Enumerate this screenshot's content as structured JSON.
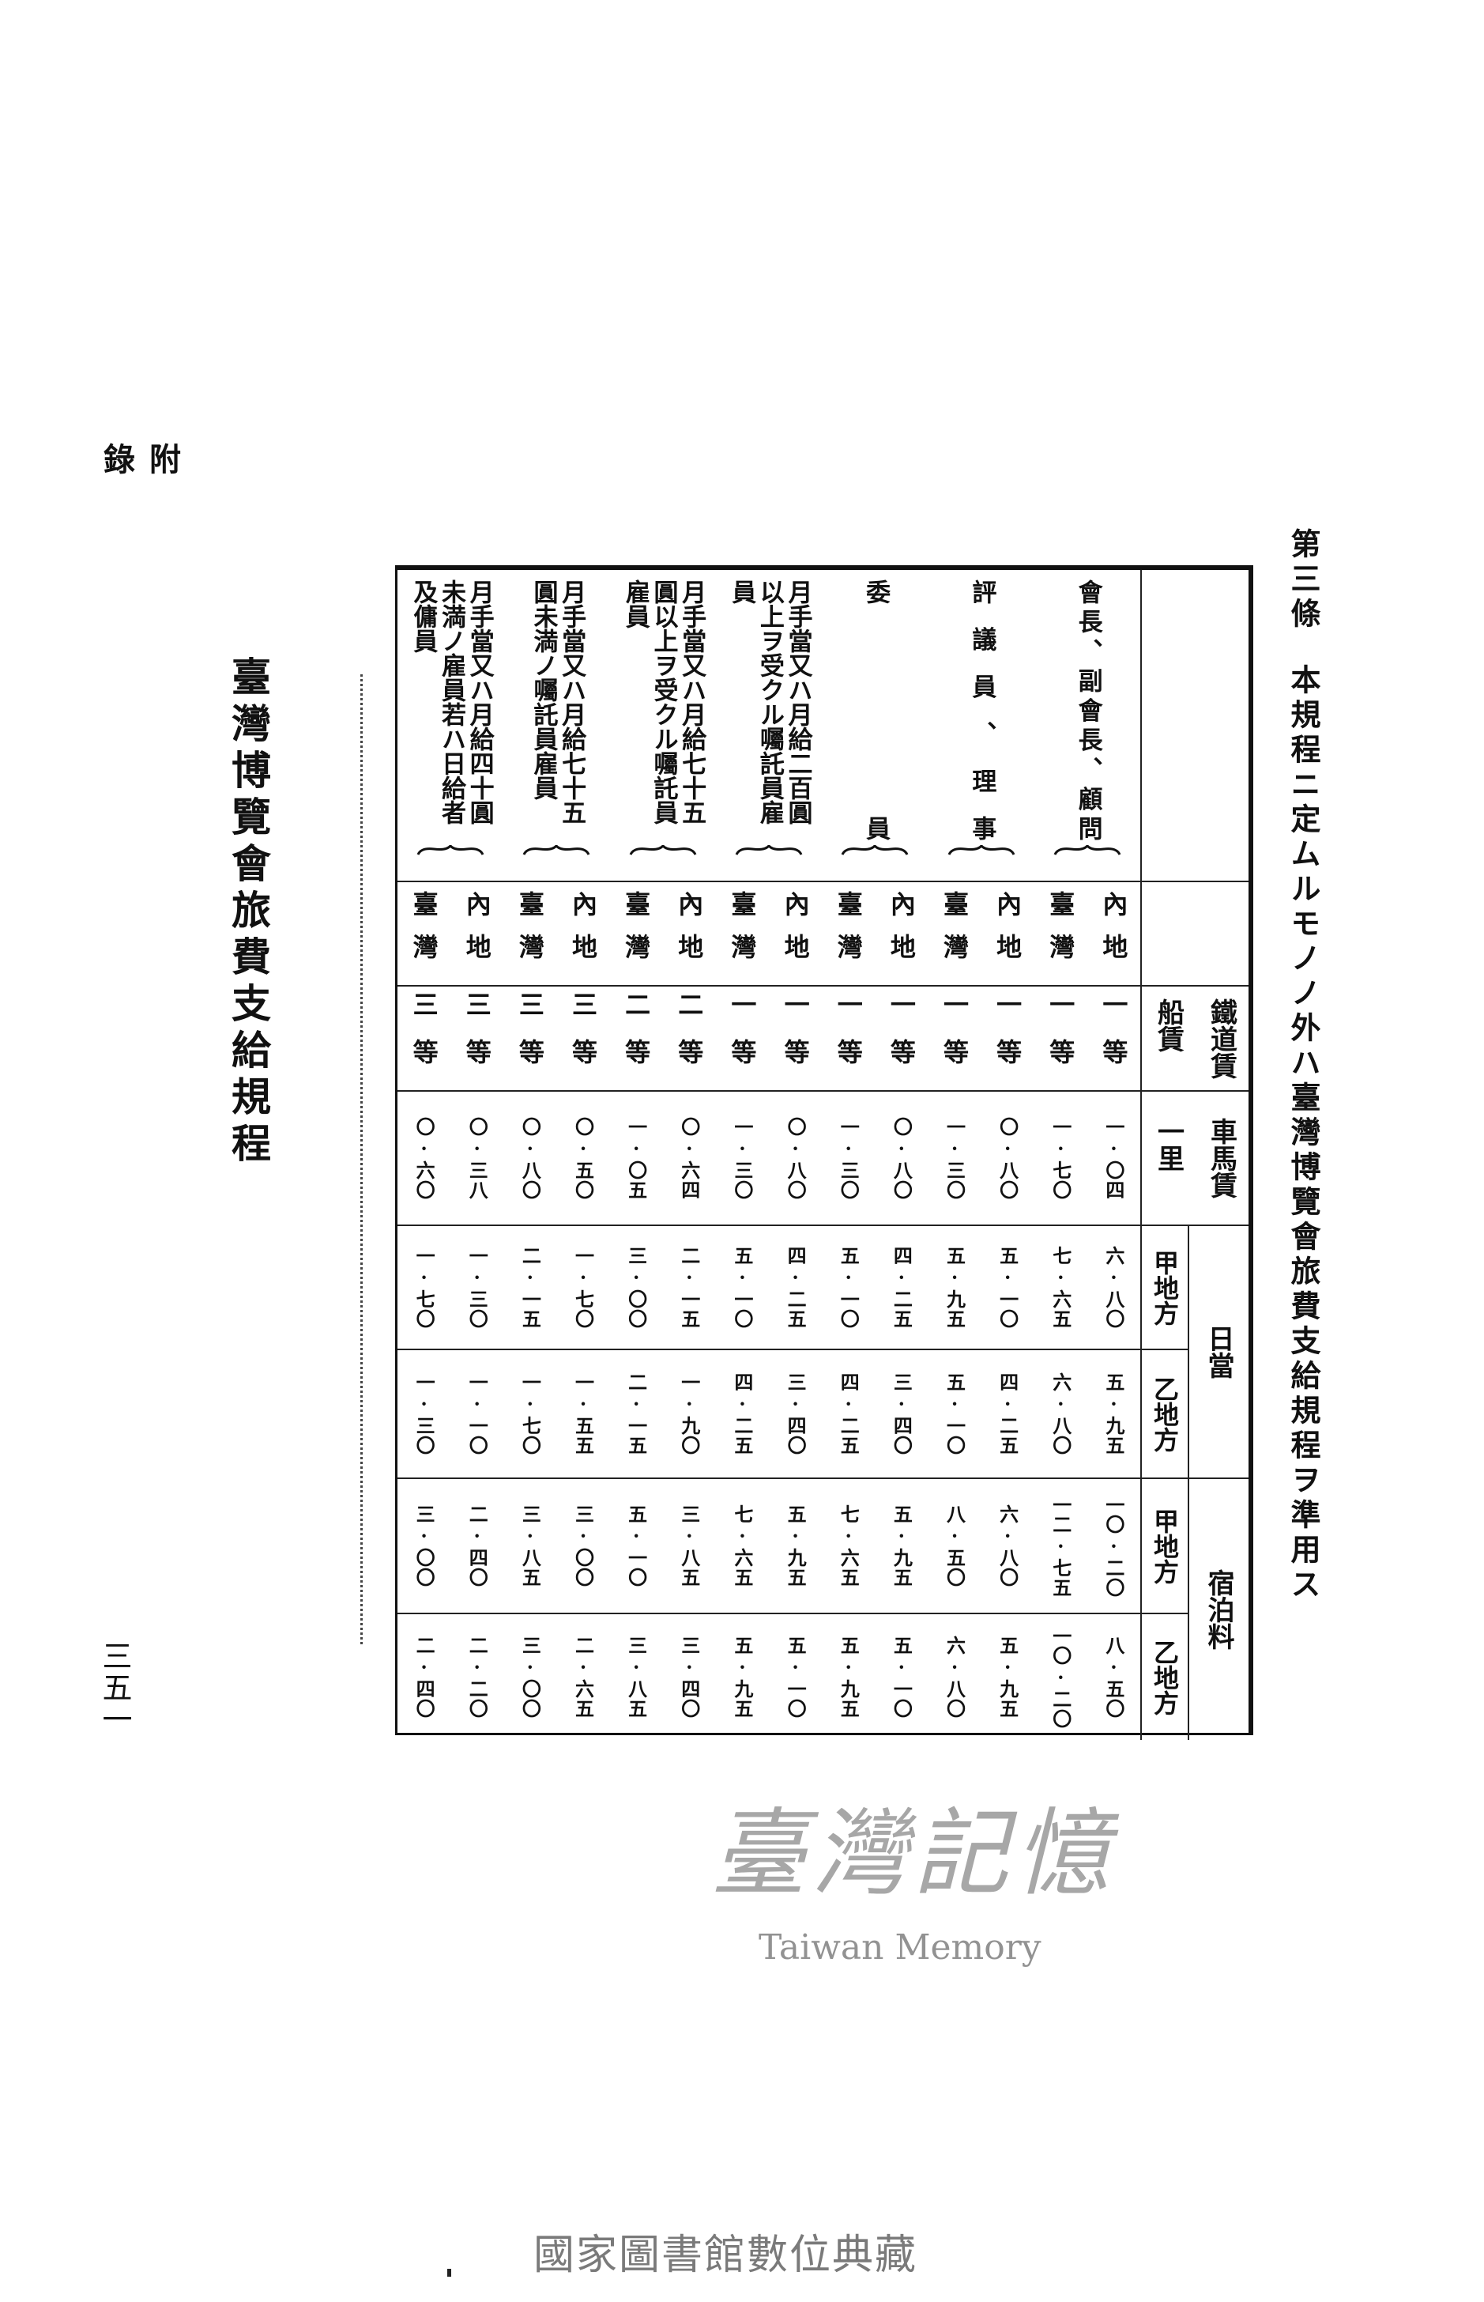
{
  "margin": {
    "section_label": [
      "附",
      "錄"
    ],
    "title": "臺灣博覽會旅費支給規程",
    "page_number": "三五一"
  },
  "article": {
    "number": "第三條",
    "text": "本規程ニ定ムルモノノ外ハ臺灣博覽會旅費支給規程ヲ準用ス"
  },
  "table": {
    "row_headers": {
      "rail_fare": "鐵道賃",
      "ship_fare": "船賃",
      "carriage_fare": "車馬賃",
      "carriage_unit": "一里",
      "daily_allowance": "日當",
      "lodging_fee": "宿泊料",
      "region_a": "甲地方",
      "region_b": "乙地方"
    },
    "groups": [
      {
        "name": "會長、副會長、顧問"
      },
      {
        "name": "評議員、理事"
      },
      {
        "name": "委員"
      },
      {
        "name": "月手當又ハ月給二百圓以上ヲ受クル囑託員雇員"
      },
      {
        "name": "月手當又ハ月給七十五圓以上ヲ受クル囑託員雇員"
      },
      {
        "name": "月手當又ハ月給七十五圓未満ノ囑託員雇員"
      },
      {
        "name": "月手當又ハ月給四十圓未満ノ雇員若ハ日給者及傭員"
      }
    ],
    "regions": [
      "內地",
      "臺灣",
      "內地",
      "臺灣",
      "內地",
      "臺灣",
      "內地",
      "臺灣",
      "內地",
      "臺灣",
      "內地",
      "臺灣",
      "內地",
      "臺灣"
    ],
    "travel_class": [
      "一等",
      "一等",
      "一等",
      "一等",
      "一等",
      "一等",
      "一等",
      "一等",
      "二等",
      "二等",
      "三等",
      "三等",
      "三等",
      "三等"
    ],
    "carriage_fare": [
      "一·〇四",
      "一·七〇",
      "〇·八〇",
      "一·三〇",
      "〇·八〇",
      "一·三〇",
      "〇·八〇",
      "一·三〇",
      "〇·六四",
      "一·〇五",
      "〇·五〇",
      "〇·八〇",
      "〇·三八",
      "〇·六〇"
    ],
    "daily_a": [
      "六·八〇",
      "七·六五",
      "五·一〇",
      "五·九五",
      "四·二五",
      "五·一〇",
      "四·二五",
      "五·一〇",
      "二·一五",
      "三·〇〇",
      "一·七〇",
      "二·一五",
      "一·三〇",
      "一·七〇"
    ],
    "daily_b": [
      "五·九五",
      "六·八〇",
      "四·二五",
      "五·一〇",
      "三·四〇",
      "四·二五",
      "三·四〇",
      "四·二五",
      "一·九〇",
      "二·一五",
      "一·五五",
      "一·七〇",
      "一·一〇",
      "一·三〇"
    ],
    "lodging_a": [
      "一〇·二〇",
      "一二·七五",
      "六·八〇",
      "八·五〇",
      "五·九五",
      "七·六五",
      "五·九五",
      "七·六五",
      "三·八五",
      "五·一〇",
      "三·〇〇",
      "三·八五",
      "二·四〇",
      "三·〇〇"
    ],
    "lodging_b": [
      "八·五〇",
      "一〇·二〇",
      "五·九五",
      "六·八〇",
      "五·一〇",
      "五·九五",
      "五·一〇",
      "五·九五",
      "三·四〇",
      "三·八五",
      "二·六五",
      "三·〇〇",
      "二·二〇",
      "二·四〇"
    ]
  },
  "watermarks": {
    "script": "臺灣記憶",
    "latin": "Taiwan Memory",
    "archive": "國家圖書館數位典藏"
  }
}
